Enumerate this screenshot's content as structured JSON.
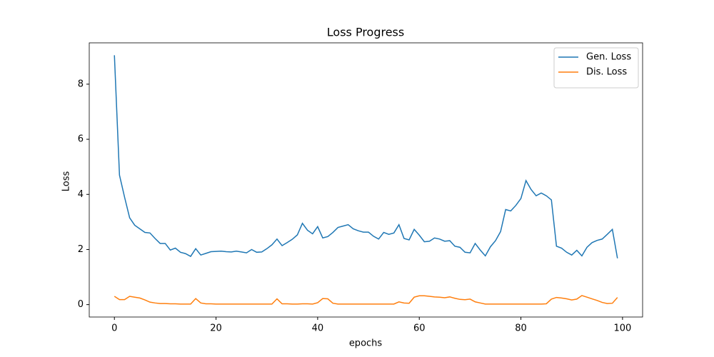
{
  "chart_data": {
    "type": "line",
    "title": "Loss Progress",
    "xlabel": "epochs",
    "ylabel": "Loss",
    "x": [
      0,
      1,
      2,
      3,
      4,
      5,
      6,
      7,
      8,
      9,
      10,
      11,
      12,
      13,
      14,
      15,
      16,
      17,
      18,
      19,
      20,
      21,
      22,
      23,
      24,
      25,
      26,
      27,
      28,
      29,
      30,
      31,
      32,
      33,
      34,
      35,
      36,
      37,
      38,
      39,
      40,
      41,
      42,
      43,
      44,
      45,
      46,
      47,
      48,
      49,
      50,
      51,
      52,
      53,
      54,
      55,
      56,
      57,
      58,
      59,
      60,
      61,
      62,
      63,
      64,
      65,
      66,
      67,
      68,
      69,
      70,
      71,
      72,
      73,
      74,
      75,
      76,
      77,
      78,
      79,
      80,
      81,
      82,
      83,
      84,
      85,
      86,
      87,
      88,
      89,
      90,
      91,
      92,
      93,
      94,
      95,
      96,
      97,
      98,
      99
    ],
    "series": [
      {
        "name": "Gen. Loss",
        "color": "#1f77b4",
        "values": [
          9.05,
          4.7,
          3.9,
          3.15,
          2.88,
          2.75,
          2.62,
          2.6,
          2.4,
          2.22,
          2.22,
          1.98,
          2.05,
          1.9,
          1.85,
          1.75,
          2.03,
          1.8,
          1.86,
          1.92,
          1.93,
          1.94,
          1.92,
          1.91,
          1.94,
          1.91,
          1.88,
          2.0,
          1.9,
          1.91,
          2.03,
          2.17,
          2.38,
          2.14,
          2.25,
          2.37,
          2.53,
          2.95,
          2.7,
          2.57,
          2.83,
          2.42,
          2.47,
          2.62,
          2.8,
          2.85,
          2.9,
          2.75,
          2.68,
          2.63,
          2.63,
          2.48,
          2.38,
          2.62,
          2.55,
          2.6,
          2.9,
          2.4,
          2.35,
          2.73,
          2.52,
          2.28,
          2.3,
          2.42,
          2.38,
          2.3,
          2.32,
          2.12,
          2.08,
          1.9,
          1.88,
          2.22,
          1.98,
          1.77,
          2.1,
          2.32,
          2.65,
          3.45,
          3.4,
          3.6,
          3.85,
          4.5,
          4.18,
          3.95,
          4.05,
          3.95,
          3.8,
          2.12,
          2.05,
          1.9,
          1.8,
          1.97,
          1.77,
          2.08,
          2.25,
          2.33,
          2.38,
          2.55,
          2.73,
          1.68
        ]
      },
      {
        "name": "Dis. Loss",
        "color": "#ff7f0e",
        "values": [
          0.3,
          0.18,
          0.18,
          0.3,
          0.27,
          0.24,
          0.17,
          0.09,
          0.06,
          0.04,
          0.04,
          0.03,
          0.03,
          0.02,
          0.02,
          0.02,
          0.22,
          0.06,
          0.03,
          0.03,
          0.02,
          0.02,
          0.02,
          0.02,
          0.02,
          0.02,
          0.02,
          0.02,
          0.02,
          0.02,
          0.02,
          0.02,
          0.21,
          0.03,
          0.03,
          0.02,
          0.02,
          0.03,
          0.03,
          0.02,
          0.07,
          0.22,
          0.21,
          0.05,
          0.02,
          0.02,
          0.02,
          0.02,
          0.02,
          0.02,
          0.02,
          0.02,
          0.02,
          0.02,
          0.02,
          0.02,
          0.1,
          0.06,
          0.05,
          0.27,
          0.32,
          0.32,
          0.3,
          0.28,
          0.27,
          0.25,
          0.28,
          0.23,
          0.19,
          0.18,
          0.2,
          0.1,
          0.06,
          0.02,
          0.02,
          0.02,
          0.02,
          0.02,
          0.02,
          0.02,
          0.02,
          0.02,
          0.02,
          0.02,
          0.02,
          0.03,
          0.2,
          0.26,
          0.24,
          0.21,
          0.17,
          0.2,
          0.33,
          0.27,
          0.21,
          0.15,
          0.08,
          0.04,
          0.05,
          0.26
        ]
      }
    ],
    "xlim": [
      -4.95,
      103.95
    ],
    "ylim": [
      -0.45,
      9.5
    ],
    "xticks": [
      0,
      20,
      40,
      60,
      80,
      100
    ],
    "yticks": [
      0,
      2,
      4,
      6,
      8
    ],
    "legend": "upper right"
  }
}
